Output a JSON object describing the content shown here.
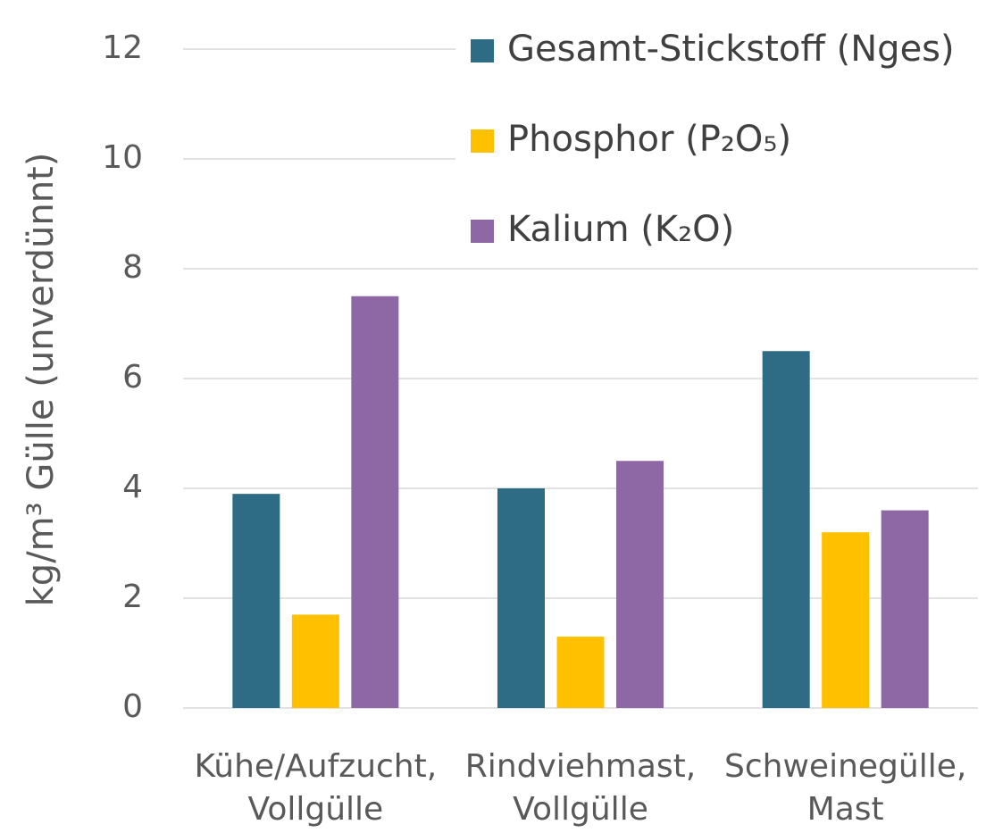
{
  "chart_data": {
    "type": "bar",
    "ylabel": "kg/m³ Gülle (unverdünnt)",
    "categories": [
      "Kühe/Aufzucht,\nVollgülle",
      "Rindviehmast,\nVollgülle",
      "Schweinegülle,\nMast"
    ],
    "series": [
      {
        "name": "Gesamt-Stickstoff (Nges)",
        "color": "#2e6b84",
        "values": [
          3.9,
          4.0,
          6.5
        ]
      },
      {
        "name": "Phosphor (P₂O₅)",
        "color": "#ffc000",
        "values": [
          1.7,
          1.3,
          3.2
        ]
      },
      {
        "name": "Kalium (K₂O)",
        "color": "#8e67a5",
        "values": [
          7.5,
          4.5,
          3.6
        ]
      }
    ],
    "ylim": [
      0,
      12
    ],
    "yticks": [
      0,
      2,
      4,
      6,
      8,
      10,
      12
    ],
    "grid": true,
    "legend": "upper right"
  }
}
